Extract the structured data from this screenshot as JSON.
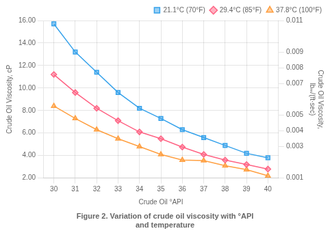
{
  "chart_data": {
    "type": "line",
    "title": "Figure 2. Variation of crude oil viscosity with °API\nand temperature",
    "xlabel": "Crude Oil °API",
    "ylabel": "Crude Oil Viscosity, cP",
    "y2label": "Crude Oil Viscosity,\nlbₘ/(ft·sec)",
    "x": [
      30,
      31,
      32,
      33,
      34,
      35,
      36,
      37,
      38,
      39,
      40
    ],
    "series": [
      {
        "name": "21.1°C (70°F)",
        "marker": "square",
        "values": [
          15.7,
          13.2,
          11.4,
          9.6,
          8.2,
          7.3,
          6.3,
          5.6,
          4.9,
          4.2,
          3.8
        ]
      },
      {
        "name": "29.4°C (85°F)",
        "marker": "diamond",
        "values": [
          11.2,
          9.6,
          8.2,
          7.1,
          6.1,
          5.5,
          4.75,
          4.1,
          3.6,
          3.2,
          2.8
        ]
      },
      {
        "name": "37.8°C (100°F)",
        "marker": "triangle",
        "values": [
          8.4,
          7.3,
          6.3,
          5.5,
          4.8,
          4.1,
          3.6,
          3.55,
          3.1,
          2.75,
          2.2
        ]
      }
    ],
    "xlim": [
      29.5,
      40.5
    ],
    "xticks": [
      30,
      31,
      32,
      33,
      34,
      35,
      36,
      37,
      38,
      39,
      40
    ],
    "ylim": [
      2,
      16
    ],
    "yticks": [
      {
        "value": 2,
        "label": "2.00"
      },
      {
        "value": 4,
        "label": "4.00"
      },
      {
        "value": 6,
        "label": "6.00"
      },
      {
        "value": 8,
        "label": "8.00"
      },
      {
        "value": 10,
        "label": "10.00"
      },
      {
        "value": 12,
        "label": "12.00"
      },
      {
        "value": 14,
        "label": "14.00"
      },
      {
        "value": 16,
        "label": "16.00"
      }
    ],
    "y2lim": [
      0.001,
      0.011
    ],
    "y2ticks": [
      0.001,
      0.003,
      0.004,
      0.005,
      0.007,
      0.008,
      0.009,
      0.011
    ],
    "grid": true,
    "legend": "upper right"
  }
}
